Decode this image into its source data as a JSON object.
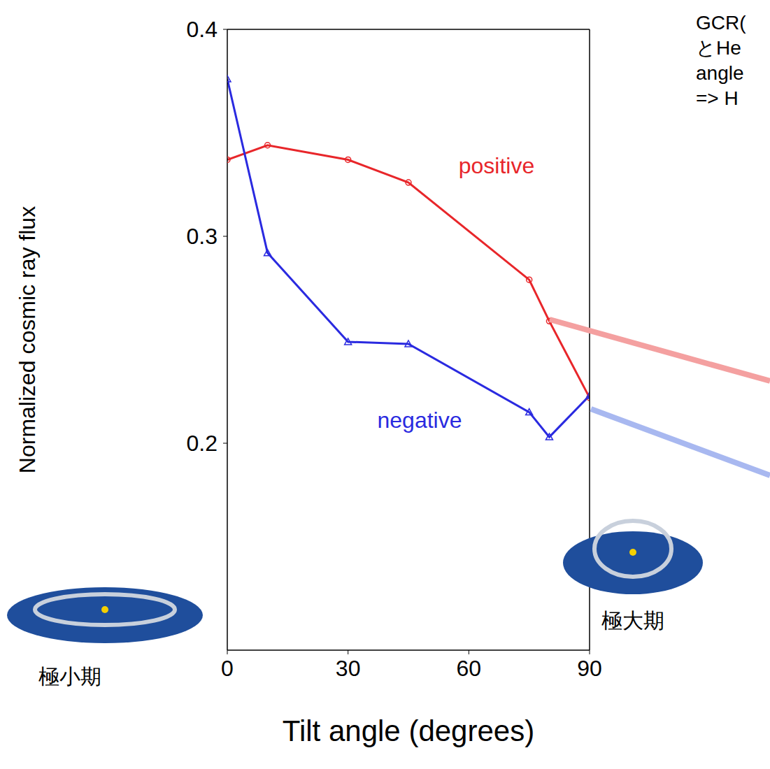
{
  "chart_data": {
    "type": "line",
    "x": [
      0,
      10,
      30,
      45,
      75,
      80,
      90
    ],
    "series": [
      {
        "name": "positive",
        "color": "#e8262a",
        "marker": "circle",
        "values": [
          0.337,
          0.344,
          0.337,
          0.326,
          0.279,
          0.259,
          0.222
        ]
      },
      {
        "name": "negative",
        "color": "#2a2ae0",
        "marker": "triangle",
        "values": [
          0.376,
          0.292,
          0.249,
          0.248,
          0.215,
          0.203,
          0.223
        ]
      }
    ],
    "xlabel": "Tilt angle (degrees)",
    "ylabel": "Normalized cosmic ray flux",
    "xlim": [
      0,
      90
    ],
    "xticks": [
      0,
      30,
      60,
      90
    ],
    "ylim": [
      0.1,
      0.4
    ],
    "yticks": [
      0.2,
      0.3,
      0.4
    ],
    "grid": false,
    "annotations": [
      "極小期",
      "極大期"
    ],
    "text": [
      "GCR(",
      "とHe",
      "angle",
      "=> H"
    ]
  }
}
